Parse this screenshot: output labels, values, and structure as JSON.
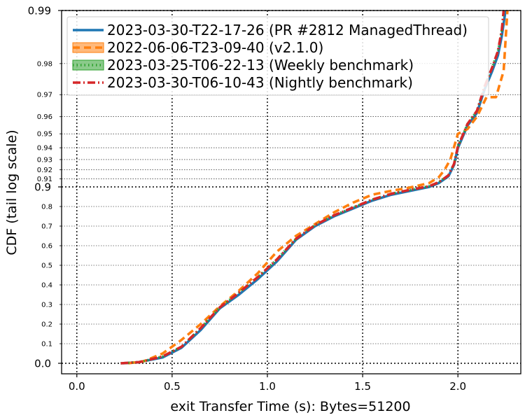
{
  "chart_data": {
    "type": "line",
    "title": "",
    "xlabel": "exit Transfer Time (s): Bytes=51200",
    "ylabel": "CDF (tail log scale)",
    "xlim": [
      -0.08,
      2.33
    ],
    "ylim": [
      0.0,
      0.99
    ],
    "y_scale": "tail log",
    "x_ticks": [
      0.0,
      0.5,
      1.0,
      1.5,
      2.0
    ],
    "x_tick_labels": [
      "0.0",
      "0.5",
      "1.0",
      "1.5",
      "2.0"
    ],
    "y_major_ticks": [
      0.0,
      0.9,
      0.99
    ],
    "y_major_tick_labels": [
      "0.0",
      "0.9",
      "0.99"
    ],
    "y_minor_ticks": [
      0.1,
      0.2,
      0.3,
      0.4,
      0.5,
      0.6,
      0.7,
      0.8,
      0.91,
      0.92,
      0.93,
      0.94,
      0.95,
      0.96,
      0.97,
      0.98
    ],
    "y_minor_tick_labels": [
      "0.1",
      "0.2",
      "0.3",
      "0.4",
      "0.5",
      "0.6",
      "0.7",
      "0.8",
      "0.91",
      "0.92",
      "0.93",
      "0.94",
      "0.95",
      "0.96",
      "0.97",
      "0.98"
    ],
    "grid": true,
    "legend_position": "top-left",
    "series": [
      {
        "name": "2023-03-30-T22-17-26 (PR #2812 ManagedThread)",
        "color": "#1f77b4",
        "style": "solid",
        "x": [
          0.24,
          0.32,
          0.45,
          0.55,
          0.65,
          0.75,
          0.85,
          0.95,
          1.05,
          1.15,
          1.25,
          1.35,
          1.45,
          1.55,
          1.65,
          1.75,
          1.85,
          1.9,
          1.95,
          1.98,
          2.0,
          2.05,
          2.1,
          2.14,
          2.18,
          2.21,
          2.23,
          2.25
        ],
        "y": [
          0.0,
          0.005,
          0.03,
          0.08,
          0.17,
          0.28,
          0.35,
          0.43,
          0.52,
          0.63,
          0.7,
          0.75,
          0.79,
          0.83,
          0.86,
          0.88,
          0.9,
          0.905,
          0.913,
          0.925,
          0.94,
          0.955,
          0.962,
          0.972,
          0.978,
          0.982,
          0.986,
          0.99
        ]
      },
      {
        "name": "2022-06-06-T23-09-40 (v2.1.0)",
        "color": "#ff7f0e",
        "style": "dashed",
        "x": [
          0.27,
          0.35,
          0.45,
          0.55,
          0.65,
          0.75,
          0.85,
          0.95,
          1.05,
          1.15,
          1.25,
          1.35,
          1.45,
          1.55,
          1.65,
          1.75,
          1.85,
          1.9,
          1.93,
          1.96,
          2.0,
          2.05,
          2.1,
          2.15,
          2.2,
          2.24,
          2.26
        ],
        "y": [
          0.0,
          0.01,
          0.05,
          0.12,
          0.2,
          0.29,
          0.37,
          0.46,
          0.57,
          0.65,
          0.71,
          0.77,
          0.82,
          0.86,
          0.88,
          0.897,
          0.905,
          0.912,
          0.92,
          0.93,
          0.95,
          0.953,
          0.96,
          0.969,
          0.969,
          0.978,
          0.99
        ]
      },
      {
        "name": "2023-03-25-T06-22-13 (Weekly benchmark)",
        "color": "#2ca02c",
        "style": "dotted",
        "x": [
          0.23,
          0.33,
          0.45,
          0.55,
          0.65,
          0.75,
          0.85,
          0.95,
          1.05,
          1.15,
          1.25,
          1.35,
          1.45,
          1.55,
          1.65,
          1.75,
          1.85,
          1.9,
          1.95,
          1.98,
          2.0,
          2.05,
          2.1,
          2.14,
          2.18,
          2.21,
          2.23,
          2.24
        ],
        "y": [
          0.0,
          0.006,
          0.035,
          0.085,
          0.18,
          0.285,
          0.36,
          0.44,
          0.53,
          0.635,
          0.705,
          0.755,
          0.795,
          0.835,
          0.865,
          0.885,
          0.901,
          0.906,
          0.914,
          0.926,
          0.941,
          0.956,
          0.963,
          0.973,
          0.979,
          0.983,
          0.987,
          0.99
        ]
      },
      {
        "name": "2023-03-30-T06-10-43 (Nightly benchmark)",
        "color": "#d62728",
        "style": "dashdot",
        "x": [
          0.23,
          0.33,
          0.45,
          0.55,
          0.65,
          0.75,
          0.85,
          0.95,
          1.05,
          1.15,
          1.25,
          1.35,
          1.45,
          1.55,
          1.65,
          1.75,
          1.85,
          1.9,
          1.95,
          1.98,
          2.0,
          2.05,
          2.1,
          2.14,
          2.18,
          2.21,
          2.23,
          2.24
        ],
        "y": [
          0.0,
          0.006,
          0.035,
          0.085,
          0.18,
          0.285,
          0.36,
          0.44,
          0.53,
          0.635,
          0.705,
          0.755,
          0.795,
          0.835,
          0.865,
          0.885,
          0.901,
          0.906,
          0.914,
          0.926,
          0.941,
          0.956,
          0.963,
          0.973,
          0.979,
          0.983,
          0.987,
          0.99
        ]
      }
    ]
  }
}
